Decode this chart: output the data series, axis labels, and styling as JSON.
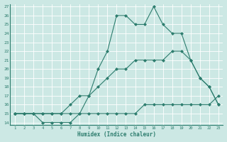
{
  "xlabel": "Humidex (Indice chaleur)",
  "bg_color": "#cce8e4",
  "line_color": "#2d7d6e",
  "xlim": [
    1,
    23
  ],
  "ylim": [
    14,
    27
  ],
  "xticks": [
    1,
    2,
    3,
    4,
    5,
    6,
    7,
    8,
    9,
    10,
    11,
    12,
    13,
    14,
    15,
    16,
    17,
    18,
    19,
    20,
    21,
    22,
    23
  ],
  "yticks": [
    14,
    15,
    16,
    17,
    18,
    19,
    20,
    21,
    22,
    23,
    24,
    25,
    26,
    27
  ],
  "line1_x": [
    1,
    2,
    3,
    4,
    5,
    6,
    7,
    8,
    9,
    10,
    11,
    12,
    13,
    14,
    15,
    16,
    17,
    18,
    19,
    20,
    21,
    22,
    23
  ],
  "line1_y": [
    15,
    15,
    15,
    15,
    15,
    15,
    15,
    15,
    15,
    15,
    15,
    15,
    15,
    15,
    16,
    16,
    16,
    16,
    16,
    16,
    16,
    16,
    17
  ],
  "line2_x": [
    1,
    2,
    3,
    4,
    5,
    6,
    7,
    8,
    9,
    10,
    11,
    12,
    13,
    14,
    15,
    16,
    17,
    18,
    19,
    20,
    21,
    22,
    23
  ],
  "line2_y": [
    15,
    15,
    15,
    15,
    15,
    15,
    16,
    17,
    17,
    18,
    19,
    20,
    20,
    21,
    21,
    21,
    21,
    22,
    22,
    21,
    19,
    18,
    16
  ],
  "line3_x": [
    1,
    2,
    3,
    4,
    5,
    6,
    7,
    8,
    9,
    10,
    11,
    12,
    13,
    14,
    15,
    16,
    17,
    18,
    19,
    20,
    21,
    22,
    23
  ],
  "line3_y": [
    15,
    15,
    15,
    14,
    14,
    14,
    14,
    15,
    17,
    20,
    22,
    26,
    26,
    25,
    25,
    27,
    25,
    24,
    24,
    21,
    19,
    18,
    16
  ]
}
